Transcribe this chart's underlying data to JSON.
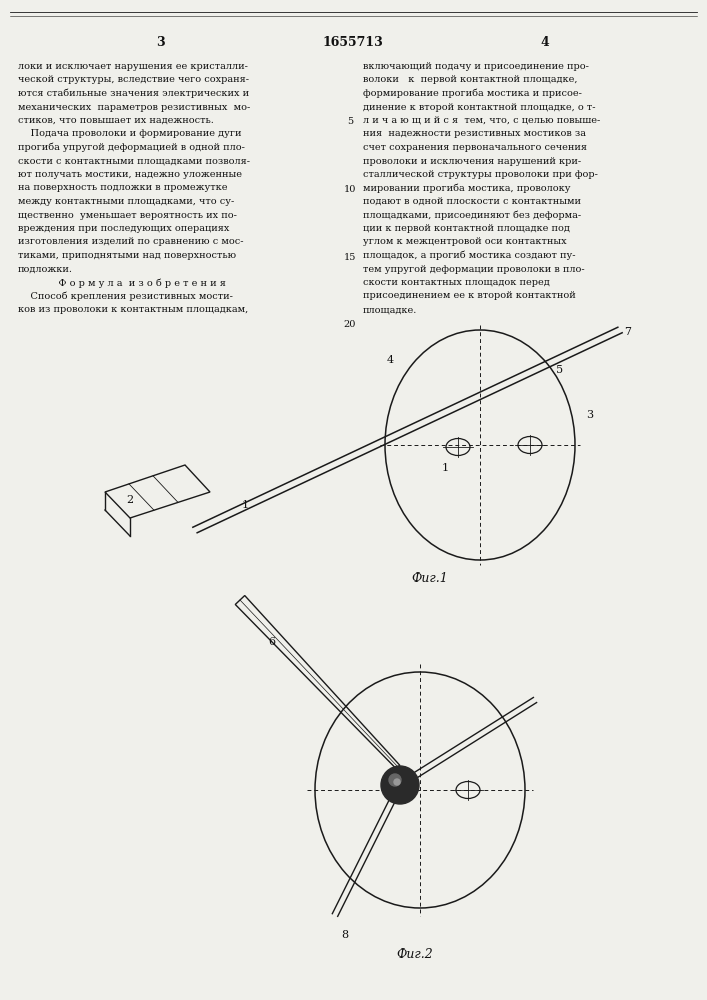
{
  "page_width": 7.07,
  "page_height": 10.0,
  "bg_color": "#f0f0eb",
  "line_color": "#1a1a1a",
  "text_color": "#111111",
  "page_number_left": "3",
  "patent_number": "1655713",
  "page_number_right": "4",
  "left_col_text": [
    "локи и исключает нарушения ее кристалли-",
    "ческой структуры, вследствие чего сохраня-",
    "ются стабильные значения электрических и",
    "механических  параметров резистивных  мо-",
    "стиков, что повышает их надежность.",
    "    Подача проволоки и формирование дуги",
    "прогиба упругой деформацией в одной пло-",
    "скости с контактными площадками позволя-",
    "ют получать мостики, надежно уложенные",
    "на поверхность подложки в промежутке",
    "между контактными площадками, что су-",
    "щественно  уменьшает вероятность их по-",
    "вреждения при последующих операциях",
    "изготовления изделий по сравнению с мос-",
    "тиками, приподнятыми над поверхностью",
    "подложки.",
    "    Ф о р м у л а  и з о б р е т е н и я",
    "    Способ крепления резистивных мости-",
    "ков из проволоки к контактным площадкам,"
  ],
  "right_col_text": [
    "включающий подачу и присоединение про-",
    "волоки   к  первой контактной площадке,",
    "формирование прогиба мостика и присое-",
    "динение к второй контактной площадке, о т-",
    "л и ч а ю щ и й с я  тем, что, с целью повыше-",
    "ния  надежности резистивных мостиков за",
    "счет сохранения первоначального сечения",
    "проволоки и исключения нарушений кри-",
    "сталлической структуры проволоки при фор-",
    "мировании прогиба мостика, проволоку",
    "подают в одной плоскости с контактными",
    "площадками, присоединяют без деформа-",
    "ции к первой контактной площадке под",
    "углом к межцентровой оси контактных",
    "площадок, а прогиб мостика создают пу-",
    "тем упругой деформации проволоки в пло-",
    "скости контактных площадок перед",
    "присоединением ее к второй контактной",
    "площадке."
  ],
  "fig1_caption": "Фиг.1",
  "fig2_caption": "Фиг.2"
}
